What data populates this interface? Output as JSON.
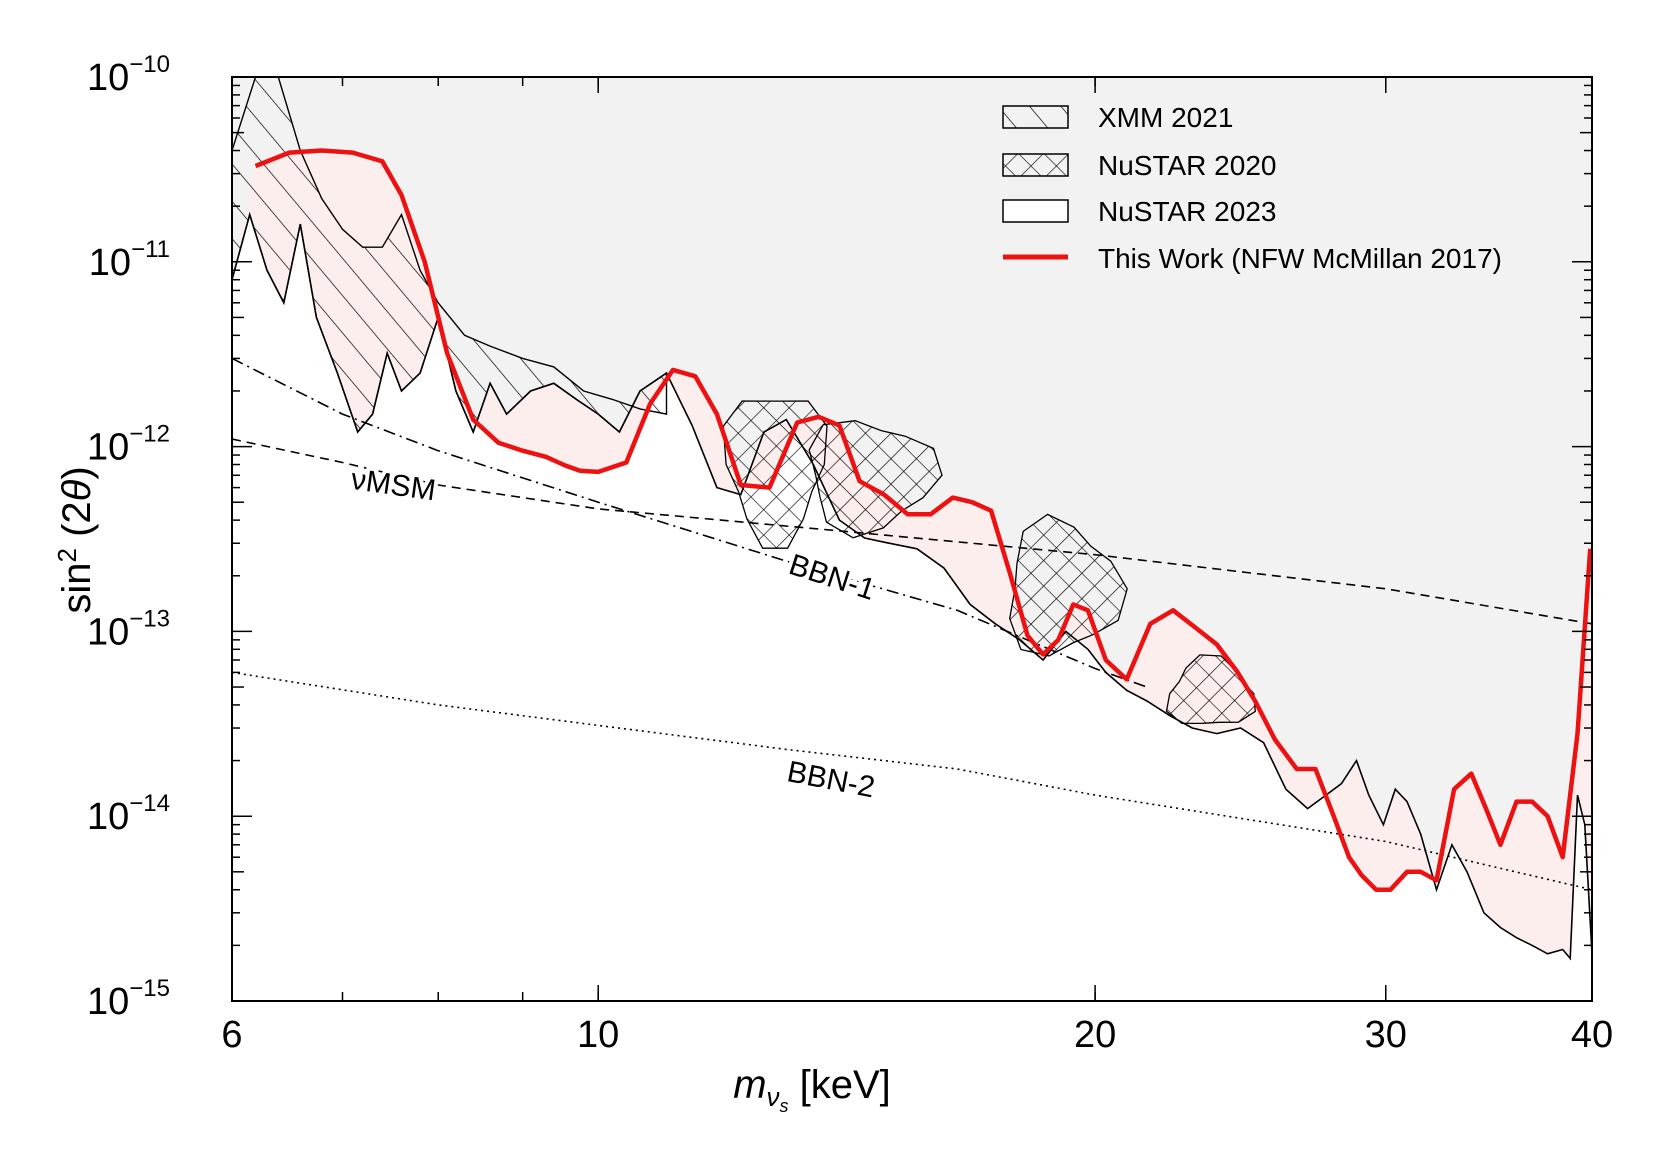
{
  "chart_data": {
    "type": "line",
    "xlabel": "m_{ν_s} [keV]",
    "xlabel_main": "m",
    "xlabel_sub": "ν",
    "xlabel_subsub": "s",
    "xlabel_unit": " [keV]",
    "ylabel": "sin² (2θ)",
    "ylabel_pre": "sin",
    "ylabel_sup": "2",
    "ylabel_mid": " (2",
    "ylabel_theta": "θ",
    "ylabel_post": ")",
    "xscale": "log",
    "yscale": "log",
    "xlim": [
      6,
      40
    ],
    "ylim": [
      1e-15,
      1e-10
    ],
    "x_ticks": [
      {
        "value": 6,
        "label": "6"
      },
      {
        "value": 10,
        "label": "10"
      },
      {
        "value": 20,
        "label": "20"
      },
      {
        "value": 30,
        "label": "30"
      },
      {
        "value": 40,
        "label": "40"
      }
    ],
    "x_minor_ticks": [
      7,
      8,
      9,
      10,
      20,
      30
    ],
    "y_ticks": [
      {
        "value": 1e-10,
        "base": "10",
        "exp": "−10"
      },
      {
        "value": 1e-11,
        "base": "10",
        "exp": "−11"
      },
      {
        "value": 1e-12,
        "base": "10",
        "exp": "−12"
      },
      {
        "value": 1e-13,
        "base": "10",
        "exp": "−13"
      },
      {
        "value": 1e-14,
        "base": "10",
        "exp": "−14"
      },
      {
        "value": 1e-15,
        "base": "10",
        "exp": "−15"
      }
    ],
    "legend_position": "top-right",
    "legend": [
      {
        "name": "XMM 2021",
        "style": "hatch-diagonal"
      },
      {
        "name": "NuSTAR 2020",
        "style": "hatch-cross"
      },
      {
        "name": "NuSTAR 2023",
        "style": "outline"
      },
      {
        "name": "This Work (NFW McMillan 2017)",
        "style": "red-line"
      }
    ],
    "colors": {
      "this_work": "#ee1111",
      "excluded_fill": "#f2f2f2",
      "this_work_fill": "#fdeeee"
    },
    "annotations": [
      {
        "text": "νMSM",
        "x": 7.5,
        "y": 5.5e-13,
        "rotate_deg": 8
      },
      {
        "text": "BBN-1",
        "x": 13.8,
        "y": 1.75e-13,
        "rotate_deg": 18
      },
      {
        "text": "BBN-2",
        "x": 13.8,
        "y": 1.4e-14,
        "rotate_deg": 11
      }
    ],
    "series": [
      {
        "name": "This Work (NFW McMillan 2017)",
        "x": [
          6.2,
          6.5,
          6.8,
          7.1,
          7.4,
          7.6,
          7.85,
          8.1,
          8.4,
          8.7,
          9.0,
          9.3,
          9.55,
          9.75,
          10.0,
          10.4,
          10.75,
          11.1,
          11.45,
          11.8,
          12.2,
          12.7,
          13.2,
          13.6,
          14.0,
          14.4,
          14.9,
          15.4,
          15.9,
          16.4,
          16.85,
          17.3,
          17.75,
          18.2,
          18.6,
          19.0,
          19.4,
          19.8,
          20.3,
          20.9,
          21.6,
          22.3,
          23.0,
          23.7,
          24.4,
          25.0,
          25.7,
          26.5,
          27.2,
          27.9,
          28.5,
          29.0,
          29.6,
          30.2,
          30.9,
          31.5,
          32.2,
          33.0,
          33.8,
          34.5,
          35.2,
          36.0,
          36.8,
          37.6,
          38.4,
          39.2,
          39.9
        ],
        "y": [
          3.3e-11,
          3.9e-11,
          4e-11,
          3.9e-11,
          3.5e-11,
          2.3e-11,
          1e-11,
          3.2e-12,
          1.4e-12,
          1.05e-12,
          9.5e-13,
          8.8e-13,
          7.9e-13,
          7.4e-13,
          7.3e-13,
          8.2e-13,
          1.7e-12,
          2.6e-12,
          2.4e-12,
          1.5e-12,
          6.2e-13,
          6e-13,
          1.35e-12,
          1.45e-12,
          1.3e-12,
          6.5e-13,
          5.5e-13,
          4.3e-13,
          4.3e-13,
          5.3e-13,
          5e-13,
          4.5e-13,
          2.1e-13,
          9.5e-14,
          7.5e-14,
          9e-14,
          1.4e-13,
          1.3e-13,
          7e-14,
          5.5e-14,
          1.1e-13,
          1.3e-13,
          1.05e-13,
          8.5e-14,
          6e-14,
          4.2e-14,
          2.6e-14,
          1.8e-14,
          1.8e-14,
          1e-14,
          6e-15,
          4.8e-15,
          4e-15,
          4e-15,
          5e-15,
          5e-15,
          4.5e-15,
          1.4e-14,
          1.7e-14,
          1.1e-14,
          7e-15,
          1.2e-14,
          1.2e-14,
          1e-14,
          6e-15,
          2.8e-14,
          2.8e-13
        ]
      },
      {
        "name": "νMSM",
        "x": [
          6.0,
          7.0,
          8.0,
          10.0,
          14.0,
          20.0,
          30.0,
          40.0
        ],
        "y": [
          1.1e-12,
          8.2e-13,
          6.2e-13,
          4.6e-13,
          3.5e-13,
          2.6e-13,
          1.7e-13,
          1.1e-13
        ]
      },
      {
        "name": "BBN-1",
        "x": [
          6.0,
          7.0,
          8.0,
          10.0,
          13.0,
          16.5,
          20.0,
          21.5
        ],
        "y": [
          3e-12,
          1.5e-12,
          9.5e-13,
          5e-13,
          2.4e-13,
          1.3e-13,
          6.3e-14,
          5e-14
        ]
      },
      {
        "name": "BBN-2",
        "x": [
          6.0,
          8.0,
          10.0,
          13.0,
          16.5,
          20.0,
          30.0,
          40.0
        ],
        "y": [
          6e-14,
          4e-14,
          3.1e-14,
          2.3e-14,
          1.8e-14,
          1.3e-14,
          7.3e-15,
          4e-15
        ]
      },
      {
        "name": "NuSTAR 2023",
        "x": [
          6.0,
          6.15,
          6.3,
          6.45,
          6.6,
          6.75,
          6.95,
          7.15,
          7.3,
          7.45,
          7.6,
          7.8,
          8.0,
          8.2,
          8.4,
          8.6,
          8.8,
          9.1,
          9.4,
          9.7,
          10.0,
          10.3,
          10.6,
          11.0,
          11.4,
          11.8,
          12.2,
          12.6,
          13.0,
          13.5,
          14.0,
          14.5,
          15.0,
          15.6,
          16.2,
          16.8,
          17.4,
          18.0,
          18.6,
          19.2,
          19.8,
          20.3,
          20.9,
          21.5,
          22.2,
          22.9,
          23.7,
          24.5,
          25.3,
          26.1,
          26.9,
          27.6,
          28.2,
          28.8,
          29.3,
          29.9,
          30.4,
          30.9,
          31.5,
          32.2,
          32.9,
          33.6,
          34.4,
          35.2,
          36.0,
          36.8,
          37.6,
          38.4,
          38.8,
          39.2,
          39.6,
          40.0
        ],
        "y": [
          8e-12,
          1.8e-11,
          9e-12,
          6e-12,
          1.6e-11,
          5e-12,
          2.5e-12,
          1.2e-12,
          1.5e-12,
          3.2e-12,
          2e-12,
          2.5e-12,
          5e-12,
          2e-12,
          1.2e-12,
          2.2e-12,
          1.5e-12,
          2e-12,
          2.2e-12,
          1.8e-12,
          1.5e-12,
          1.2e-12,
          2e-12,
          2.5e-12,
          1.3e-12,
          6e-13,
          5.5e-13,
          1.2e-12,
          1.4e-12,
          8e-13,
          4e-13,
          3.2e-13,
          3e-13,
          2.8e-13,
          2.2e-13,
          1.4e-13,
          1.1e-13,
          9e-14,
          7e-14,
          1e-13,
          8e-14,
          6e-14,
          4.8e-14,
          4.2e-14,
          3.5e-14,
          3e-14,
          2.8e-14,
          3e-14,
          2.5e-14,
          1.4e-14,
          1.1e-14,
          1.3e-14,
          1.5e-14,
          2e-14,
          1.3e-14,
          9e-15,
          1.4e-14,
          1.2e-14,
          8e-15,
          4e-15,
          7e-15,
          5e-15,
          3e-15,
          2.5e-15,
          2.2e-15,
          2e-15,
          1.8e-15,
          1.9e-15,
          1.7e-15,
          1.3e-14,
          9e-15,
          1.8e-15
        ]
      },
      {
        "name": "XMM 2021",
        "x": [
          6.0,
          6.2,
          6.4,
          6.6,
          6.8,
          7.0,
          7.2,
          7.4,
          7.6,
          7.8,
          8.0,
          8.3,
          8.6,
          9.0,
          9.4,
          9.8,
          10.2,
          10.6,
          11.0
        ],
        "y": [
          4e-11,
          1e-10,
          1e-10,
          4e-11,
          2.2e-11,
          1.5e-11,
          1.2e-11,
          1.2e-11,
          1.8e-11,
          9e-12,
          6e-12,
          4e-12,
          3.5e-12,
          3e-12,
          2.7e-12,
          2e-12,
          1.8e-12,
          1.6e-12,
          1.5e-12
        ]
      }
    ]
  }
}
